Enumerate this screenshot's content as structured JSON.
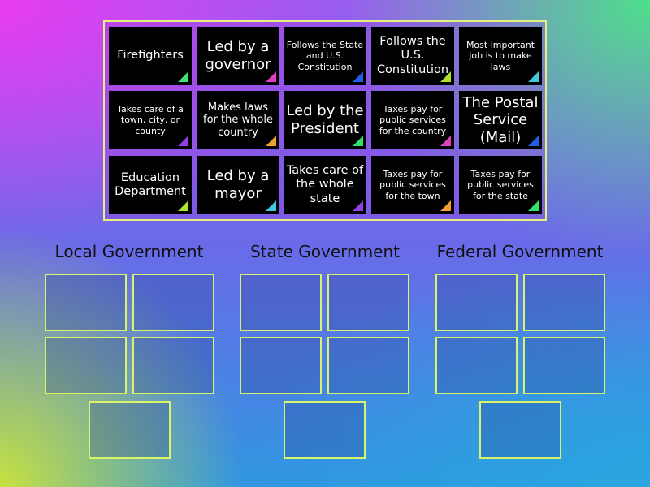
{
  "cards": [
    {
      "text": "Firefighters",
      "corner": "#3ee07a"
    },
    {
      "text": "Led by a governor",
      "corner": "#e040c0"
    },
    {
      "text": "Follows the State and U.S. Constitution",
      "corner": "#2060e8"
    },
    {
      "text": "Follows the U.S. Constitution",
      "corner": "#b0e030"
    },
    {
      "text": "Most important job is to make laws",
      "corner": "#40c8e0"
    },
    {
      "text": "Takes care of a town, city, or county",
      "corner": "#9040e8"
    },
    {
      "text": "Makes laws for the whole country",
      "corner": "#f0a030"
    },
    {
      "text": "Led by the President",
      "corner": "#30e070"
    },
    {
      "text": "Taxes pay for public services for the country",
      "corner": "#e040c0"
    },
    {
      "text": "The Postal Service (Mail)",
      "corner": "#2060e8"
    },
    {
      "text": "Education Department",
      "corner": "#b0e030"
    },
    {
      "text": "Led by a mayor",
      "corner": "#40c8e0"
    },
    {
      "text": "Takes care of the whole state",
      "corner": "#9040e8"
    },
    {
      "text": "Taxes pay for public services for the town",
      "corner": "#f0a030"
    },
    {
      "text": "Taxes pay for public services for the state",
      "corner": "#30e070"
    }
  ],
  "groups": [
    {
      "title": "Local Government"
    },
    {
      "title": "State Government"
    },
    {
      "title": "Federal Government"
    }
  ]
}
